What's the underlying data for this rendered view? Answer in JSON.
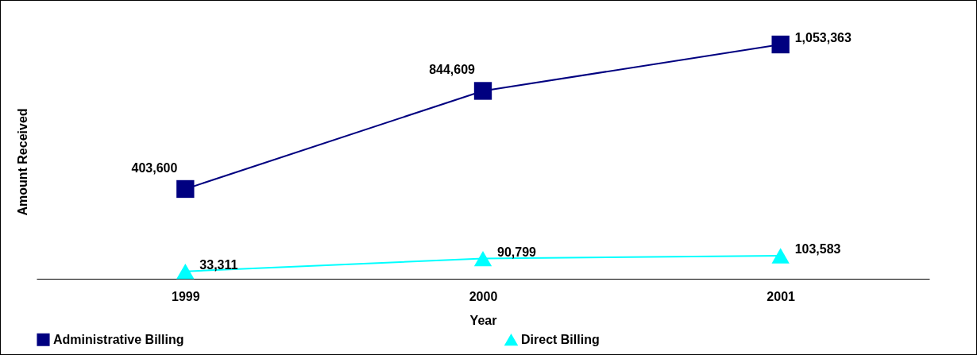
{
  "chart_data": {
    "type": "line",
    "xlabel": "Year",
    "ylabel": "Amount Received",
    "categories": [
      "1999",
      "2000",
      "2001"
    ],
    "series": [
      {
        "name": "Administrative Billing",
        "color": "#000080",
        "marker": "square",
        "values": [
          403600,
          844609,
          1053363
        ],
        "value_labels": [
          "403,600",
          "844,609",
          "1,053,363"
        ]
      },
      {
        "name": "Direct Billing",
        "color": "#00ffff",
        "marker": "triangle",
        "values": [
          33311,
          90799,
          103583
        ],
        "value_labels": [
          "33,311",
          "90,799",
          "103,583"
        ]
      }
    ],
    "grid": false,
    "legend": "bottom",
    "line_style": "solid"
  }
}
